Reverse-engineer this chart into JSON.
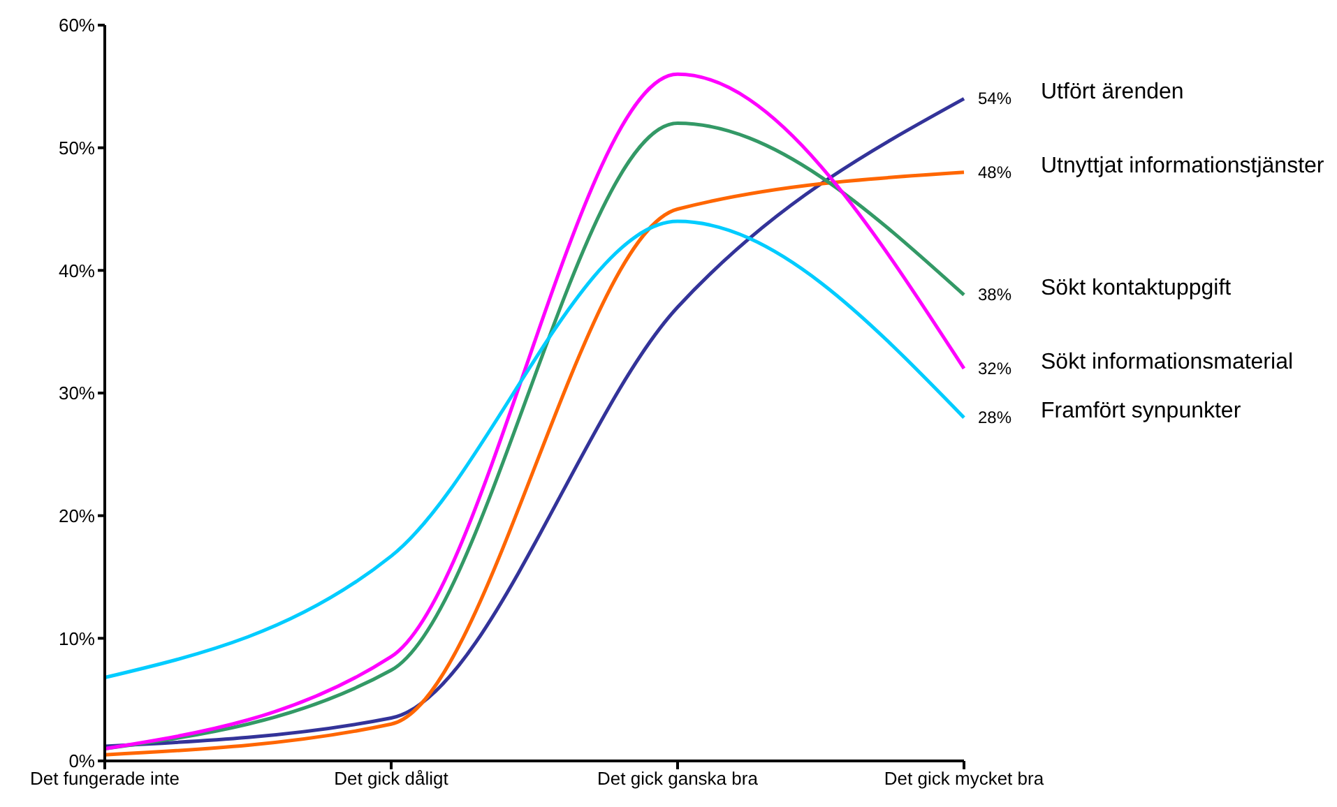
{
  "chart_data": {
    "type": "line",
    "categories": [
      "Det fungerade inte",
      "Det gick dåligt",
      "Det gick ganska bra",
      "Det gick mycket bra"
    ],
    "ylim": [
      0,
      60
    ],
    "yticks": [
      {
        "value": 0,
        "label": "0%"
      },
      {
        "value": 10,
        "label": "10%"
      },
      {
        "value": 20,
        "label": "20%"
      },
      {
        "value": 30,
        "label": "30%"
      },
      {
        "value": 40,
        "label": "40%"
      },
      {
        "value": 50,
        "label": "50%"
      },
      {
        "value": 60,
        "label": "60%"
      }
    ],
    "series": [
      {
        "name": "Utfört ärenden",
        "color": "#333399",
        "values": [
          1.2,
          3.5,
          37,
          54
        ],
        "value_labels": [
          null,
          null,
          null,
          "54%"
        ]
      },
      {
        "name": "Utnyttjat informationstjänster",
        "color": "#ff6600",
        "values": [
          0.5,
          3,
          45,
          48
        ],
        "value_labels": [
          null,
          null,
          null,
          "48%"
        ]
      },
      {
        "name": "Sökt kontaktuppgift",
        "color": "#339966",
        "values": [
          1,
          7.4,
          52,
          38
        ],
        "value_labels": [
          null,
          null,
          null,
          "38%"
        ]
      },
      {
        "name": "Sökt informationsmaterial",
        "color": "#ff00ff",
        "values": [
          1,
          8.5,
          56,
          32
        ],
        "value_labels": [
          null,
          null,
          null,
          "32%"
        ]
      },
      {
        "name": "Framfört synpunkter",
        "color": "#00ccff",
        "values": [
          6.8,
          16.7,
          44,
          28
        ],
        "value_labels": [
          null,
          null,
          null,
          "28%"
        ]
      }
    ]
  }
}
